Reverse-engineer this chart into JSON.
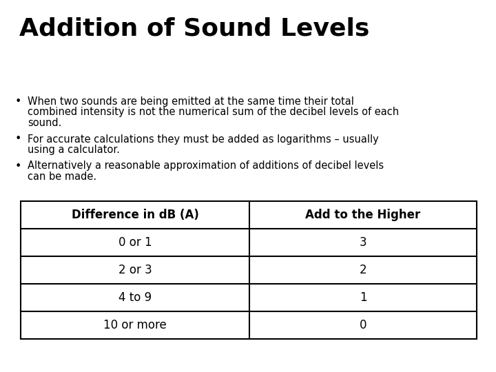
{
  "title": "Addition of Sound Levels",
  "title_fontsize": 26,
  "title_fontweight": "bold",
  "bullet_points": [
    "When two sounds are being emitted at the same time their total\ncombined intensity is not the numerical sum of the decibel levels of each\nsound.",
    "For accurate calculations they must be added as logarithms – usually\nusing a calculator.",
    "Alternatively a reasonable approximation of additions of decibel levels\ncan be made."
  ],
  "bullet_fontsize": 10.5,
  "table_headers": [
    "Difference in dB (A)",
    "Add to the Higher"
  ],
  "table_rows": [
    [
      "0 or 1",
      "3"
    ],
    [
      "2 or 3",
      "2"
    ],
    [
      "4 to 9",
      "1"
    ],
    [
      "10 or more",
      "0"
    ]
  ],
  "table_header_fontsize": 12,
  "table_row_fontsize": 12,
  "bg_color": "#ffffff",
  "text_color": "#000000",
  "table_border_color": "#000000"
}
